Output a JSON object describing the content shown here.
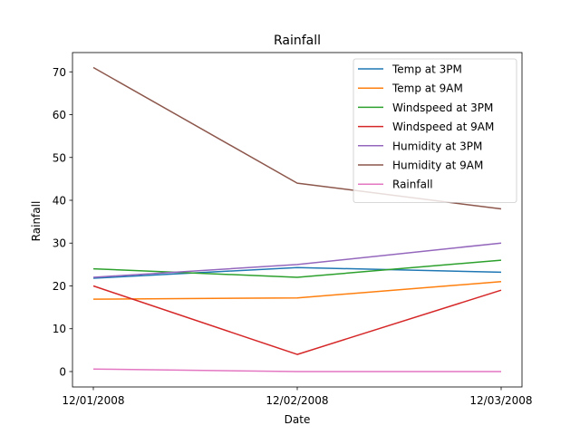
{
  "chart_data": {
    "type": "line",
    "title": "Rainfall",
    "xlabel": "Date",
    "ylabel": "Rainfall",
    "categories": [
      "12/01/2008",
      "12/02/2008",
      "12/03/2008"
    ],
    "ylim": [
      -3.6,
      74.5
    ],
    "yticks": [
      0,
      10,
      20,
      30,
      40,
      50,
      60,
      70
    ],
    "grid": false,
    "legend_position": "top-right",
    "series": [
      {
        "name": "Temp at 3PM",
        "color": "#1f77b4",
        "values": [
          21.8,
          24.3,
          23.2
        ]
      },
      {
        "name": "Temp at 9AM",
        "color": "#ff7f0e",
        "values": [
          16.9,
          17.2,
          21.0
        ]
      },
      {
        "name": "Windspeed at 3PM",
        "color": "#2ca02c",
        "values": [
          24,
          22,
          26
        ]
      },
      {
        "name": "Windspeed at 9AM",
        "color": "#d62728",
        "values": [
          20,
          4,
          19
        ]
      },
      {
        "name": "Humidity at 3PM",
        "color": "#9467bd",
        "values": [
          22,
          25,
          30
        ]
      },
      {
        "name": "Humidity at 9AM",
        "color": "#8c564b",
        "values": [
          71,
          44,
          38
        ]
      },
      {
        "name": "Rainfall",
        "color": "#e377c2",
        "values": [
          0.6,
          0.0,
          0.0
        ]
      }
    ]
  }
}
